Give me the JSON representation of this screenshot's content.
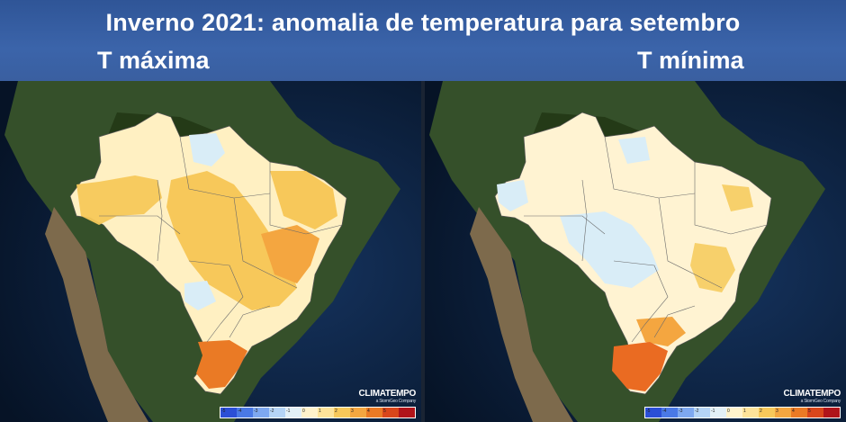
{
  "title": "Inverno 2021: anomalia  de temperatura para setembro",
  "panels": {
    "left": {
      "label": "T máxima"
    },
    "right": {
      "label": "T mínima"
    }
  },
  "brand": {
    "name": "CLIMATEMPO",
    "tagline": "a StormGeo Company"
  },
  "colors": {
    "ocean": "#0b1f3d",
    "land_forest": "#2f4a1e",
    "land_dry": "#7a6446",
    "anomaly_neutral": "#fff3cc",
    "anomaly_warm1": "#f7d06b",
    "anomaly_warm2": "#f4a640",
    "anomaly_warm3": "#ea6b22",
    "anomaly_cool": "#d6ecf7",
    "header": "#2f5597"
  },
  "colorbar": {
    "colors": [
      "#2b4fd6",
      "#4a79e6",
      "#7ea8f0",
      "#b5d4f6",
      "#e3f0f7",
      "#fff3cc",
      "#fde39a",
      "#f7c85a",
      "#f4a640",
      "#ea7a25",
      "#d9461b",
      "#b0141a"
    ],
    "ticks": [
      "-5",
      "-4",
      "-3",
      "-2",
      "-1",
      "0",
      "1",
      "2",
      "3",
      "4",
      "5",
      ""
    ]
  },
  "icons": {
    "map": "brazil-anomaly-map"
  }
}
